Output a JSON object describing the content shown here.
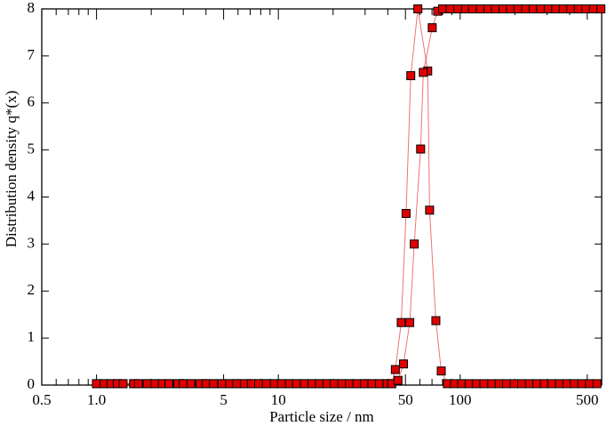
{
  "chart_data": {
    "type": "scatter",
    "x_label": "Particle size / nm",
    "y_label": "Distribution density q*(x)",
    "xlog": true,
    "xlim": [
      0.5,
      600
    ],
    "ylim": [
      0,
      8
    ],
    "xticks": [
      0.5,
      {
        "value": 1,
        "label": "1.0"
      },
      5,
      10,
      50,
      100,
      500
    ],
    "xminor_ticks": [
      0.6,
      0.7,
      0.8,
      0.9,
      2,
      3,
      4,
      6,
      7,
      8,
      9,
      20,
      30,
      40,
      60,
      70,
      80,
      90,
      200,
      300,
      400
    ],
    "yticks": [
      0,
      1,
      2,
      3,
      4,
      5,
      6,
      7,
      8
    ],
    "series": [
      {
        "color": "#e00000",
        "x": [
          1.0,
          1.1,
          1.2,
          1.3,
          1.4,
          1.6,
          1.7,
          1.9,
          2.1,
          2.3,
          2.5,
          2.8,
          3.0,
          3.3,
          3.7,
          4.0,
          4.4,
          4.9,
          5.4,
          5.9,
          6.5,
          7.1,
          7.8,
          8.6,
          9.5,
          10.4,
          11.5,
          12.6,
          13.9,
          15.3,
          16.8,
          18.5,
          20.3,
          22.4,
          24.6,
          27.0,
          29.8,
          32.7,
          36.0,
          39.6,
          42.0,
          44,
          47.4,
          50.4,
          53.5,
          58.5,
          66.3,
          67.9,
          73.5,
          78.7,
          85,
          93,
          102,
          112,
          123,
          135,
          149,
          164,
          180,
          198,
          218,
          240,
          264,
          290,
          319,
          351,
          386,
          425,
          467,
          514,
          565
        ],
        "values": [
          0.03,
          0.03,
          0.03,
          0.03,
          0.03,
          0.03,
          0.03,
          0.03,
          0.03,
          0.03,
          0.03,
          0.03,
          0.03,
          0.03,
          0.03,
          0.03,
          0.03,
          0.03,
          0.03,
          0.03,
          0.03,
          0.03,
          0.03,
          0.03,
          0.03,
          0.03,
          0.03,
          0.03,
          0.03,
          0.03,
          0.03,
          0.03,
          0.03,
          0.03,
          0.03,
          0.03,
          0.03,
          0.03,
          0.03,
          0.03,
          0.03,
          0.33,
          1.33,
          3.65,
          6.58,
          8,
          6.68,
          3.72,
          1.37,
          0.3,
          0.03,
          0.03,
          0.03,
          0.03,
          0.03,
          0.03,
          0.03,
          0.03,
          0.03,
          0.03,
          0.03,
          0.03,
          0.03,
          0.03,
          0.03,
          0.03,
          0.03,
          0.03,
          0.03,
          0.03,
          0.03
        ]
      },
      {
        "color": "#e00000",
        "x": [
          1.0,
          1.1,
          1.2,
          1.3,
          1.4,
          1.6,
          1.7,
          1.9,
          2.1,
          2.3,
          2.5,
          2.8,
          3.0,
          3.3,
          3.7,
          4.0,
          4.4,
          4.9,
          5.4,
          5.9,
          6.5,
          7.1,
          7.8,
          8.6,
          9.5,
          10.4,
          11.5,
          12.6,
          13.9,
          15.3,
          16.8,
          18.5,
          20.3,
          22.4,
          24.6,
          27.0,
          29.8,
          32.7,
          36.0,
          39.6,
          42.0,
          45.5,
          48.8,
          52.8,
          55.9,
          60.6,
          62.7,
          70.2,
          75.2,
          80,
          88,
          97,
          107,
          117,
          129,
          142,
          156,
          172,
          189,
          208,
          229,
          252,
          277,
          305,
          335,
          369,
          406,
          446,
          491,
          540,
          594
        ],
        "values": [
          0.03,
          0.03,
          0.03,
          0.03,
          0.03,
          0.03,
          0.03,
          0.03,
          0.03,
          0.03,
          0.03,
          0.03,
          0.03,
          0.03,
          0.03,
          0.03,
          0.03,
          0.03,
          0.03,
          0.03,
          0.03,
          0.03,
          0.03,
          0.03,
          0.03,
          0.03,
          0.03,
          0.03,
          0.03,
          0.03,
          0.03,
          0.03,
          0.03,
          0.03,
          0.03,
          0.03,
          0.03,
          0.03,
          0.03,
          0.03,
          0.03,
          0.1,
          0.45,
          1.33,
          3.0,
          5.02,
          6.65,
          7.6,
          7.95,
          8,
          8,
          8,
          8,
          8,
          8,
          8,
          8,
          8,
          8,
          8,
          8,
          8,
          8,
          8,
          8,
          8,
          8,
          8,
          8,
          8,
          8
        ]
      }
    ]
  }
}
